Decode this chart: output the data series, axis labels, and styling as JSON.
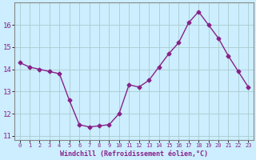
{
  "x": [
    0,
    1,
    2,
    3,
    4,
    5,
    6,
    7,
    8,
    9,
    10,
    11,
    12,
    13,
    14,
    15,
    16,
    17,
    18,
    19,
    20,
    21,
    22,
    23
  ],
  "y": [
    14.3,
    14.1,
    14.0,
    13.9,
    13.8,
    12.6,
    11.5,
    11.4,
    11.45,
    11.5,
    12.0,
    13.3,
    13.2,
    13.5,
    14.1,
    14.7,
    15.2,
    16.1,
    16.6,
    16.0,
    15.4,
    14.6,
    13.9,
    13.2
  ],
  "line_color": "#882288",
  "marker": "D",
  "marker_size": 2.5,
  "marker_linewidth": 1.0,
  "line_width": 1.0,
  "xlabel": "Windchill (Refroidissement éolien,°C)",
  "ylabel": "",
  "ylim": [
    10.8,
    17.0
  ],
  "yticks": [
    11,
    12,
    13,
    14,
    15,
    16
  ],
  "xticks": [
    0,
    1,
    2,
    3,
    4,
    5,
    6,
    7,
    8,
    9,
    10,
    11,
    12,
    13,
    14,
    15,
    16,
    17,
    18,
    19,
    20,
    21,
    22,
    23
  ],
  "xtick_labels": [
    "0",
    "1",
    "2",
    "3",
    "4",
    "5",
    "6",
    "7",
    "8",
    "9",
    "10",
    "11",
    "12",
    "13",
    "14",
    "15",
    "16",
    "17",
    "18",
    "19",
    "20",
    "21",
    "22",
    "23"
  ],
  "bg_color": "#cceeff",
  "grid_color": "#aacccc",
  "border_color": "#888888",
  "xlabel_color": "#882288",
  "xlabel_fontsize": 6.0,
  "ytick_fontsize": 6.5,
  "xtick_fontsize": 5.0
}
